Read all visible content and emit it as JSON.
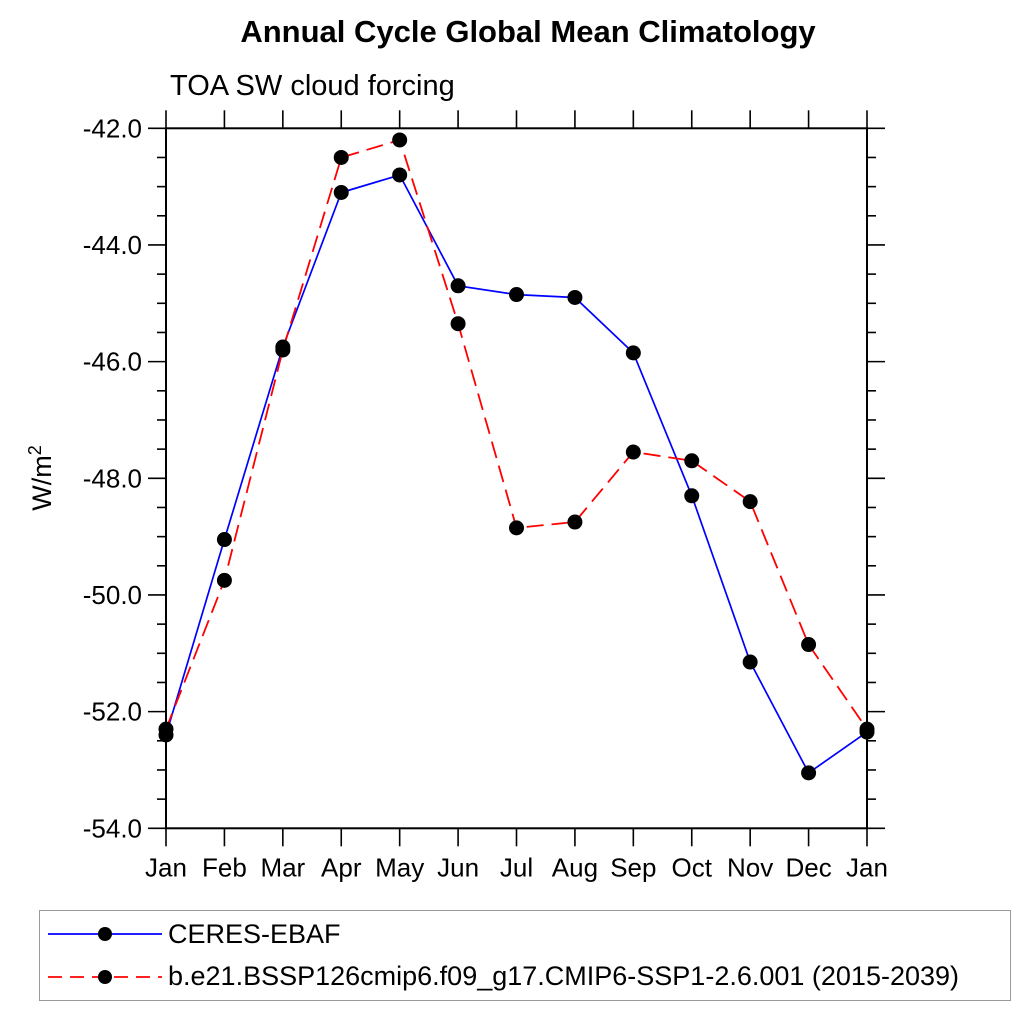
{
  "title": "Annual Cycle Global Mean Climatology",
  "subtitle": "TOA SW cloud forcing",
  "ylabel": {
    "base": "W/m",
    "sup": "2"
  },
  "legend": {
    "position": "bottom",
    "items": [
      {
        "label": "CERES-EBAF"
      },
      {
        "label": "b.e21.BSSP126cmip6.f09_g17.CMIP6-SSP1-2.6.001 (2015-2039)"
      }
    ]
  },
  "chart_data": {
    "type": "line",
    "title": "Annual Cycle Global Mean Climatology",
    "subtitle": "TOA SW cloud forcing",
    "xlabel": "",
    "ylabel": "W/m2",
    "categories": [
      "Jan",
      "Feb",
      "Mar",
      "Apr",
      "May",
      "Jun",
      "Jul",
      "Aug",
      "Sep",
      "Oct",
      "Nov",
      "Dec",
      "Jan"
    ],
    "series": [
      {
        "name": "CERES-EBAF",
        "color": "#0000ff",
        "style": "solid",
        "marker": "circle",
        "marker_color": "#000000",
        "values": [
          -52.4,
          -49.05,
          -45.75,
          -43.1,
          -42.8,
          -44.7,
          -44.85,
          -44.9,
          -45.85,
          -48.3,
          -51.15,
          -53.05,
          -52.35
        ]
      },
      {
        "name": "b.e21.BSSP126cmip6.f09_g17.CMIP6-SSP1-2.6.001 (2015-2039)",
        "color": "#ff0000",
        "style": "dashed",
        "marker": "circle",
        "marker_color": "#000000",
        "values": [
          -52.3,
          -49.75,
          -45.8,
          -42.5,
          -42.2,
          -45.35,
          -48.85,
          -48.75,
          -47.55,
          -47.7,
          -48.4,
          -50.85,
          -52.3
        ]
      }
    ],
    "ylim": [
      -54.0,
      -42.0
    ],
    "yticks": [
      -42,
      -44,
      -46,
      -48,
      -50,
      -52,
      -54
    ],
    "ytick_labels": [
      "-42.0",
      "-44.0",
      "-46.0",
      "-48.0",
      "-50.0",
      "-52.0",
      "-54.0"
    ],
    "yminor_step": 0.5,
    "grid": false,
    "legend_position": "bottom"
  },
  "colors": {
    "axis": "#000000",
    "legend_border": "#999999",
    "background": "#ffffff"
  }
}
